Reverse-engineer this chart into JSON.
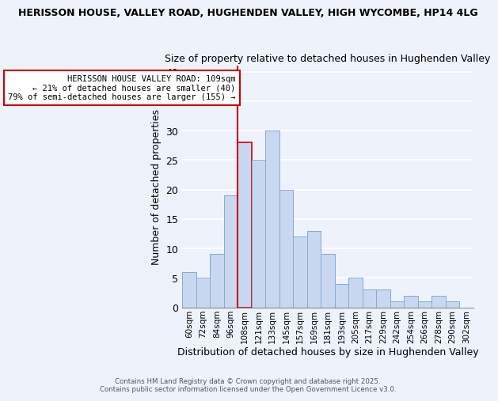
{
  "title_line1": "HERISSON HOUSE, VALLEY ROAD, HUGHENDEN VALLEY, HIGH WYCOMBE, HP14 4LG",
  "title_line2": "Size of property relative to detached houses in Hughenden Valley",
  "xlabel": "Distribution of detached houses by size in Hughenden Valley",
  "ylabel": "Number of detached properties",
  "bin_labels": [
    "60sqm",
    "72sqm",
    "84sqm",
    "96sqm",
    "108sqm",
    "121sqm",
    "133sqm",
    "145sqm",
    "157sqm",
    "169sqm",
    "181sqm",
    "193sqm",
    "205sqm",
    "217sqm",
    "229sqm",
    "242sqm",
    "254sqm",
    "266sqm",
    "278sqm",
    "290sqm",
    "302sqm"
  ],
  "bar_heights": [
    6,
    5,
    9,
    19,
    28,
    25,
    30,
    20,
    12,
    13,
    9,
    4,
    5,
    3,
    3,
    1,
    2,
    1,
    2,
    1,
    0
  ],
  "bar_color": "#c8d8f0",
  "bar_edge_color": "#88a8d0",
  "highlight_bar_index": 4,
  "highlight_bar_edge_color": "#cc0000",
  "vline_x_index": 4,
  "annotation_text": "HERISSON HOUSE VALLEY ROAD: 109sqm\n← 21% of detached houses are smaller (40)\n79% of semi-detached houses are larger (155) →",
  "annotation_box_edge_color": "#cc0000",
  "background_color": "#eef2fa",
  "grid_color": "#ffffff",
  "ylim": [
    0,
    41
  ],
  "yticks": [
    0,
    5,
    10,
    15,
    20,
    25,
    30,
    35,
    40
  ],
  "footer_line1": "Contains HM Land Registry data © Crown copyright and database right 2025.",
  "footer_line2": "Contains public sector information licensed under the Open Government Licence v3.0."
}
